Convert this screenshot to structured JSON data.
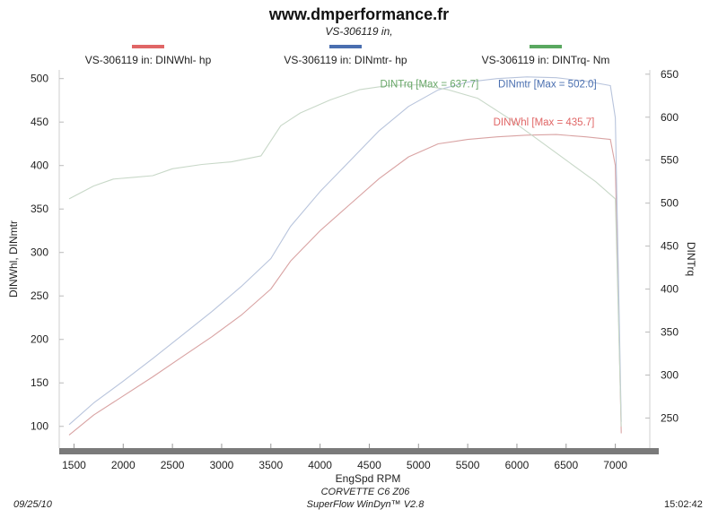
{
  "header": {
    "title": "www.dmperformance.fr",
    "subtitle": "VS-306119 in,"
  },
  "legend": [
    {
      "label": "VS-306119 in: DINWhl-  hp",
      "color": "#e06666"
    },
    {
      "label": "VS-306119 in: DINmtr-  hp",
      "color": "#4a6fb0"
    },
    {
      "label": "VS-306119 in: DINTrq-  Nm",
      "color": "#5aa860"
    }
  ],
  "footer": {
    "date": "09/25/10",
    "car": "CORVETTE C6 Z06",
    "software": "SuperFlow WinDyn™ V2.8",
    "time": "15:02:42"
  },
  "chart_data": {
    "type": "line",
    "xlabel": "EngSpd  RPM",
    "ylabel_left": "DINWhl, DINmtr",
    "ylabel_right": "DINTrq",
    "xlim": [
      1350,
      7350
    ],
    "ylim_left": [
      75,
      510
    ],
    "ylim_right": [
      215,
      655
    ],
    "x_ticks": [
      1500,
      2000,
      2500,
      3000,
      3500,
      4000,
      4500,
      5000,
      5500,
      6000,
      6500,
      7000
    ],
    "y_ticks_left": [
      100,
      150,
      200,
      250,
      300,
      350,
      400,
      450,
      500
    ],
    "y_ticks_right": [
      250,
      300,
      350,
      400,
      450,
      500,
      550,
      600,
      650
    ],
    "grid": false,
    "annotations": [
      {
        "text": "DINTrq [Max = 637.7]",
        "color": "#6aa86a"
      },
      {
        "text": "DINmtr [Max = 502.0]",
        "color": "#4a6fb0"
      },
      {
        "text": "DINWhl [Max = 435.7]",
        "color": "#e06666"
      }
    ],
    "series": [
      {
        "name": "DINWhl",
        "axis": "left",
        "color": "#d9a3a3",
        "x": [
          1450,
          1700,
          2000,
          2300,
          2600,
          2900,
          3200,
          3500,
          3700,
          4000,
          4300,
          4600,
          4900,
          5200,
          5500,
          5800,
          6100,
          6400,
          6700,
          6950,
          7000,
          7060
        ],
        "y": [
          90,
          113,
          135,
          157,
          180,
          203,
          228,
          258,
          290,
          325,
          355,
          385,
          410,
          425,
          430,
          433,
          435,
          435.7,
          433,
          430,
          400,
          92
        ]
      },
      {
        "name": "DINmtr",
        "axis": "left",
        "color": "#b8c4dc",
        "x": [
          1450,
          1700,
          2000,
          2300,
          2600,
          2900,
          3200,
          3500,
          3700,
          4000,
          4300,
          4600,
          4900,
          5200,
          5500,
          5800,
          6100,
          6400,
          6700,
          6950,
          7000,
          7060
        ],
        "y": [
          102,
          127,
          152,
          178,
          205,
          232,
          261,
          293,
          330,
          370,
          405,
          440,
          468,
          487,
          496,
          500,
          502,
          501,
          497,
          492,
          455,
          105
        ]
      },
      {
        "name": "DINTrq",
        "axis": "right",
        "color": "#c8d8c8",
        "x": [
          1450,
          1700,
          1900,
          2100,
          2300,
          2500,
          2800,
          3100,
          3400,
          3600,
          3800,
          4100,
          4400,
          4700,
          5000,
          5300,
          5600,
          5900,
          6200,
          6500,
          6800,
          7000,
          7060
        ],
        "y": [
          505,
          520,
          528,
          530,
          532,
          540,
          545,
          548,
          555,
          590,
          605,
          620,
          632,
          637,
          637.7,
          632,
          622,
          600,
          575,
          550,
          525,
          505,
          240
        ]
      }
    ]
  }
}
